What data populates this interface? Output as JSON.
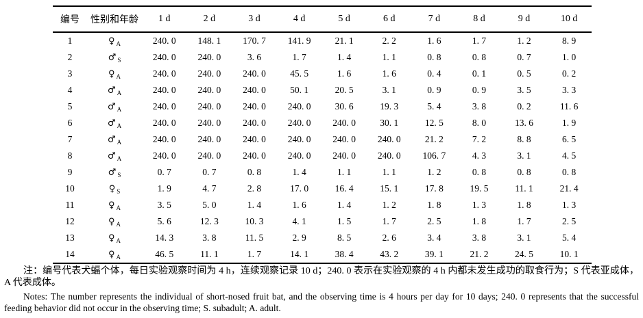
{
  "table": {
    "headers": [
      "编号",
      "性别和年龄",
      "1 d",
      "2 d",
      "3 d",
      "4 d",
      "5 d",
      "6 d",
      "7 d",
      "8 d",
      "9 d",
      "10 d"
    ],
    "rows": [
      {
        "id": "1",
        "sex": "♀",
        "age": "A",
        "values": [
          "240. 0",
          "148. 1",
          "170. 7",
          "141. 9",
          "21. 1",
          "2. 2",
          "1. 6",
          "1. 7",
          "1. 2",
          "8. 9"
        ]
      },
      {
        "id": "2",
        "sex": "♂",
        "age": "S",
        "values": [
          "240. 0",
          "240. 0",
          "3. 6",
          "1. 7",
          "1. 4",
          "1. 1",
          "0. 8",
          "0. 8",
          "0. 7",
          "1. 0"
        ]
      },
      {
        "id": "3",
        "sex": "♀",
        "age": "A",
        "values": [
          "240. 0",
          "240. 0",
          "240. 0",
          "45. 5",
          "1. 6",
          "1. 6",
          "0. 4",
          "0. 1",
          "0. 5",
          "0. 2"
        ]
      },
      {
        "id": "4",
        "sex": "♂",
        "age": "A",
        "values": [
          "240. 0",
          "240. 0",
          "240. 0",
          "50. 1",
          "20. 5",
          "3. 1",
          "0. 9",
          "0. 9",
          "3. 5",
          "3. 3"
        ]
      },
      {
        "id": "5",
        "sex": "♂",
        "age": "A",
        "values": [
          "240. 0",
          "240. 0",
          "240. 0",
          "240. 0",
          "30. 6",
          "19. 3",
          "5. 4",
          "3. 8",
          "0. 2",
          "11. 6"
        ]
      },
      {
        "id": "6",
        "sex": "♂",
        "age": "A",
        "values": [
          "240. 0",
          "240. 0",
          "240. 0",
          "240. 0",
          "240. 0",
          "30. 1",
          "12. 5",
          "8. 0",
          "13. 6",
          "1. 9"
        ]
      },
      {
        "id": "7",
        "sex": "♂",
        "age": "A",
        "values": [
          "240. 0",
          "240. 0",
          "240. 0",
          "240. 0",
          "240. 0",
          "240. 0",
          "21. 2",
          "7. 2",
          "8. 8",
          "6. 5"
        ]
      },
      {
        "id": "8",
        "sex": "♂",
        "age": "A",
        "values": [
          "240. 0",
          "240. 0",
          "240. 0",
          "240. 0",
          "240. 0",
          "240. 0",
          "106. 7",
          "4. 3",
          "3. 1",
          "4. 5"
        ]
      },
      {
        "id": "9",
        "sex": "♂",
        "age": "S",
        "values": [
          "0. 7",
          "0. 7",
          "0. 8",
          "1. 4",
          "1. 1",
          "1. 1",
          "1. 2",
          "0. 8",
          "0. 8",
          "0. 8"
        ]
      },
      {
        "id": "10",
        "sex": "♀",
        "age": "S",
        "values": [
          "1. 9",
          "4. 7",
          "2. 8",
          "17. 0",
          "16. 4",
          "15. 1",
          "17. 8",
          "19. 5",
          "11. 1",
          "21. 4"
        ]
      },
      {
        "id": "11",
        "sex": "♀",
        "age": "A",
        "values": [
          "3. 5",
          "5. 0",
          "1. 4",
          "1. 6",
          "1. 4",
          "1. 2",
          "1. 8",
          "1. 3",
          "1. 8",
          "1. 3"
        ]
      },
      {
        "id": "12",
        "sex": "♀",
        "age": "A",
        "values": [
          "5. 6",
          "12. 3",
          "10. 3",
          "4. 1",
          "1. 5",
          "1. 7",
          "2. 5",
          "1. 8",
          "1. 7",
          "2. 5"
        ]
      },
      {
        "id": "13",
        "sex": "♀",
        "age": "A",
        "values": [
          "14. 3",
          "3. 8",
          "11. 5",
          "2. 9",
          "8. 5",
          "2. 6",
          "3. 4",
          "3. 8",
          "3. 1",
          "5. 4"
        ]
      },
      {
        "id": "14",
        "sex": "♀",
        "age": "A",
        "values": [
          "46. 5",
          "11. 1",
          "1. 7",
          "14. 1",
          "38. 4",
          "43. 2",
          "39. 1",
          "21. 2",
          "24. 5",
          "10. 1"
        ]
      }
    ]
  },
  "notes": {
    "zh": "注：编号代表犬蝠个体，每日实验观察时间为 4 h，连续观察记录 10 d；240. 0 表示在实验观察的 4 h 内都未发生成功的取食行为；S 代表亚成体，A 代表成体。",
    "en": "Notes: The number represents the individual of short-nosed fruit bat, and the observing time is 4 hours per day for 10 days; 240. 0 represents that the successful feeding behavior did not occur in the observing time; S. subadult; A. adult."
  }
}
